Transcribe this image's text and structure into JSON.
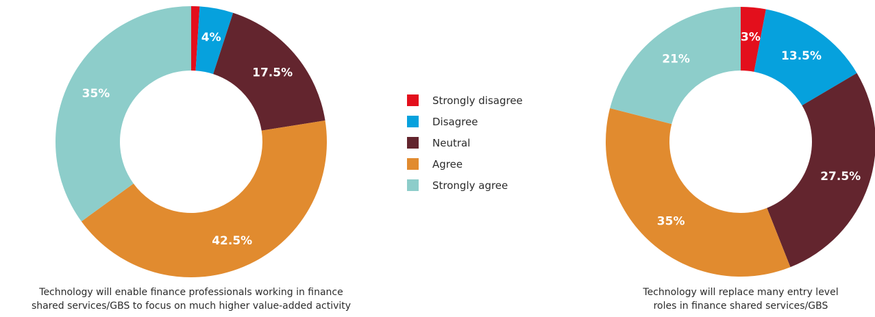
{
  "colors": {
    "Strongly disagree": "#e30f1c",
    "Disagree": "#06a1dd",
    "Neutral": "#63252e",
    "Agree": "#e18b2f",
    "Strongly agree": "#8dcdca"
  },
  "legend": {
    "items": [
      "Strongly disagree",
      "Disagree",
      "Neutral",
      "Agree",
      "Strongly agree"
    ]
  },
  "chart_data": [
    {
      "type": "pie",
      "donut": true,
      "title": "",
      "caption_lines": [
        "Technology will enable finance professionals working in finance",
        "shared services/GBS to focus on much higher value-added activity"
      ],
      "categories": [
        "Strongly disagree",
        "Disagree",
        "Neutral",
        "Agree",
        "Strongly agree"
      ],
      "values": [
        1,
        4,
        17.5,
        42.5,
        35
      ],
      "labels": [
        "",
        "4%",
        "17.5%",
        "42.5%",
        "35%"
      ],
      "legend": "center"
    },
    {
      "type": "pie",
      "donut": true,
      "title": "",
      "caption_lines": [
        "Technology will replace many entry level",
        "roles in finance shared services/GBS"
      ],
      "categories": [
        "Strongly disagree",
        "Disagree",
        "Neutral",
        "Agree",
        "Strongly agree"
      ],
      "values": [
        3,
        13.5,
        27.5,
        35,
        21
      ],
      "labels": [
        "3%",
        "13.5%",
        "27.5%",
        "35%",
        "21%"
      ],
      "legend": "center"
    }
  ]
}
